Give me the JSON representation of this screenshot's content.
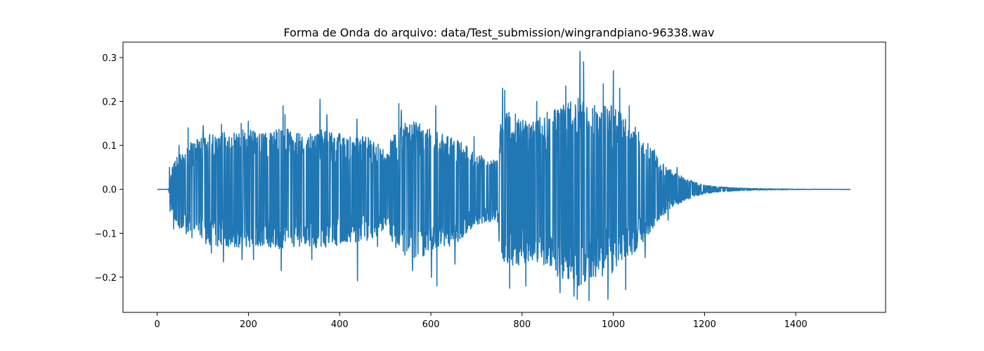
{
  "chart_data": {
    "type": "line",
    "title": "Forma de Onda do arquivo: data/Test_submission/wingrandpiano-96338.wav",
    "xlabel": "",
    "ylabel": "",
    "xlim": [
      -75,
      1597
    ],
    "ylim": [
      -0.28,
      0.335
    ],
    "x_ticks": [
      0,
      200,
      400,
      600,
      800,
      1000,
      1200,
      1400
    ],
    "y_ticks": [
      -0.2,
      -0.1,
      0.0,
      0.1,
      0.2,
      0.3
    ],
    "x_tick_labels": [
      "0",
      "200",
      "400",
      "600",
      "800",
      "1000",
      "1200",
      "1400"
    ],
    "y_tick_labels": [
      "−0.2",
      "−0.1",
      "0.0",
      "0.1",
      "0.2",
      "0.3"
    ],
    "grid": false,
    "series": [
      {
        "color": "#1f77b4",
        "envelope": {
          "x": [
            0,
            25,
            30,
            40,
            60,
            80,
            100,
            120,
            150,
            180,
            200,
            230,
            260,
            280,
            300,
            330,
            360,
            380,
            400,
            420,
            440,
            460,
            480,
            500,
            508,
            512,
            520,
            540,
            560,
            580,
            600,
            620,
            640,
            660,
            680,
            700,
            745,
            752,
            760,
            780,
            800,
            820,
            840,
            860,
            880,
            900,
            920,
            930,
            940,
            960,
            980,
            1000,
            1020,
            1040,
            1060,
            1080,
            1100,
            1120,
            1140,
            1160,
            1180,
            1200,
            1230,
            1260,
            1300,
            1350,
            1400,
            1450,
            1520
          ],
          "upper": [
            0,
            0,
            0.04,
            0.07,
            0.1,
            0.11,
            0.12,
            0.13,
            0.13,
            0.135,
            0.14,
            0.13,
            0.135,
            0.14,
            0.13,
            0.13,
            0.135,
            0.13,
            0.13,
            0.12,
            0.12,
            0.12,
            0.11,
            0.09,
            0.08,
            0.12,
            0.13,
            0.15,
            0.16,
            0.15,
            0.14,
            0.13,
            0.12,
            0.11,
            0.1,
            0.08,
            0.07,
            0.15,
            0.17,
            0.18,
            0.16,
            0.15,
            0.17,
            0.18,
            0.19,
            0.2,
            0.21,
            0.2,
            0.2,
            0.19,
            0.2,
            0.19,
            0.17,
            0.15,
            0.13,
            0.1,
            0.07,
            0.05,
            0.035,
            0.025,
            0.016,
            0.01,
            0.006,
            0.004,
            0.002,
            0.001,
            0.0005,
            0.0002,
            0.0001
          ],
          "lower": [
            0,
            0,
            -0.04,
            -0.08,
            -0.1,
            -0.11,
            -0.12,
            -0.13,
            -0.13,
            -0.135,
            -0.14,
            -0.13,
            -0.135,
            -0.14,
            -0.13,
            -0.13,
            -0.135,
            -0.13,
            -0.13,
            -0.12,
            -0.12,
            -0.12,
            -0.11,
            -0.09,
            -0.08,
            -0.12,
            -0.13,
            -0.15,
            -0.17,
            -0.16,
            -0.15,
            -0.14,
            -0.13,
            -0.12,
            -0.1,
            -0.08,
            -0.07,
            -0.15,
            -0.17,
            -0.18,
            -0.17,
            -0.16,
            -0.18,
            -0.19,
            -0.2,
            -0.21,
            -0.22,
            -0.22,
            -0.21,
            -0.2,
            -0.2,
            -0.19,
            -0.17,
            -0.15,
            -0.13,
            -0.1,
            -0.07,
            -0.05,
            -0.035,
            -0.025,
            -0.016,
            -0.01,
            -0.006,
            -0.004,
            -0.002,
            -0.001,
            -0.0005,
            -0.0002,
            -0.0001
          ]
        },
        "peaks": [
          {
            "x": 27,
            "y": 0.05
          },
          {
            "x": 36,
            "y": 0.09
          },
          {
            "x": 48,
            "y": 0.1
          },
          {
            "x": 68,
            "y": 0.14
          },
          {
            "x": 101,
            "y": 0.145
          },
          {
            "x": 141,
            "y": 0.148
          },
          {
            "x": 184,
            "y": 0.15
          },
          {
            "x": 200,
            "y": 0.155
          },
          {
            "x": 276,
            "y": 0.19
          },
          {
            "x": 280,
            "y": 0.17
          },
          {
            "x": 357,
            "y": 0.205
          },
          {
            "x": 372,
            "y": 0.17
          },
          {
            "x": 438,
            "y": 0.16
          },
          {
            "x": 535,
            "y": 0.18
          },
          {
            "x": 530,
            "y": 0.195
          },
          {
            "x": 611,
            "y": 0.19
          },
          {
            "x": 695,
            "y": 0.12
          },
          {
            "x": 757,
            "y": 0.23
          },
          {
            "x": 762,
            "y": 0.225
          },
          {
            "x": 771,
            "y": 0.175
          },
          {
            "x": 832,
            "y": 0.2
          },
          {
            "x": 896,
            "y": 0.235
          },
          {
            "x": 927,
            "y": 0.314
          },
          {
            "x": 935,
            "y": 0.29
          },
          {
            "x": 978,
            "y": 0.24
          },
          {
            "x": 1000,
            "y": 0.27
          },
          {
            "x": 1014,
            "y": 0.23
          },
          {
            "x": 1035,
            "y": 0.19
          },
          {
            "x": 1090,
            "y": 0.09
          },
          {
            "x": 1140,
            "y": 0.05
          }
        ],
        "troughs": [
          {
            "x": 28,
            "y": -0.05
          },
          {
            "x": 36,
            "y": -0.09
          },
          {
            "x": 76,
            "y": -0.11
          },
          {
            "x": 119,
            "y": -0.145
          },
          {
            "x": 145,
            "y": -0.165
          },
          {
            "x": 186,
            "y": -0.16
          },
          {
            "x": 211,
            "y": -0.16
          },
          {
            "x": 272,
            "y": -0.185
          },
          {
            "x": 339,
            "y": -0.16
          },
          {
            "x": 439,
            "y": -0.208
          },
          {
            "x": 483,
            "y": -0.13
          },
          {
            "x": 560,
            "y": -0.185
          },
          {
            "x": 601,
            "y": -0.2
          },
          {
            "x": 613,
            "y": -0.22
          },
          {
            "x": 653,
            "y": -0.17
          },
          {
            "x": 773,
            "y": -0.225
          },
          {
            "x": 808,
            "y": -0.22
          },
          {
            "x": 883,
            "y": -0.235
          },
          {
            "x": 914,
            "y": -0.243
          },
          {
            "x": 921,
            "y": -0.25
          },
          {
            "x": 947,
            "y": -0.253
          },
          {
            "x": 988,
            "y": -0.25
          },
          {
            "x": 1027,
            "y": -0.228
          },
          {
            "x": 1070,
            "y": -0.155
          },
          {
            "x": 1120,
            "y": -0.07
          }
        ]
      }
    ]
  }
}
